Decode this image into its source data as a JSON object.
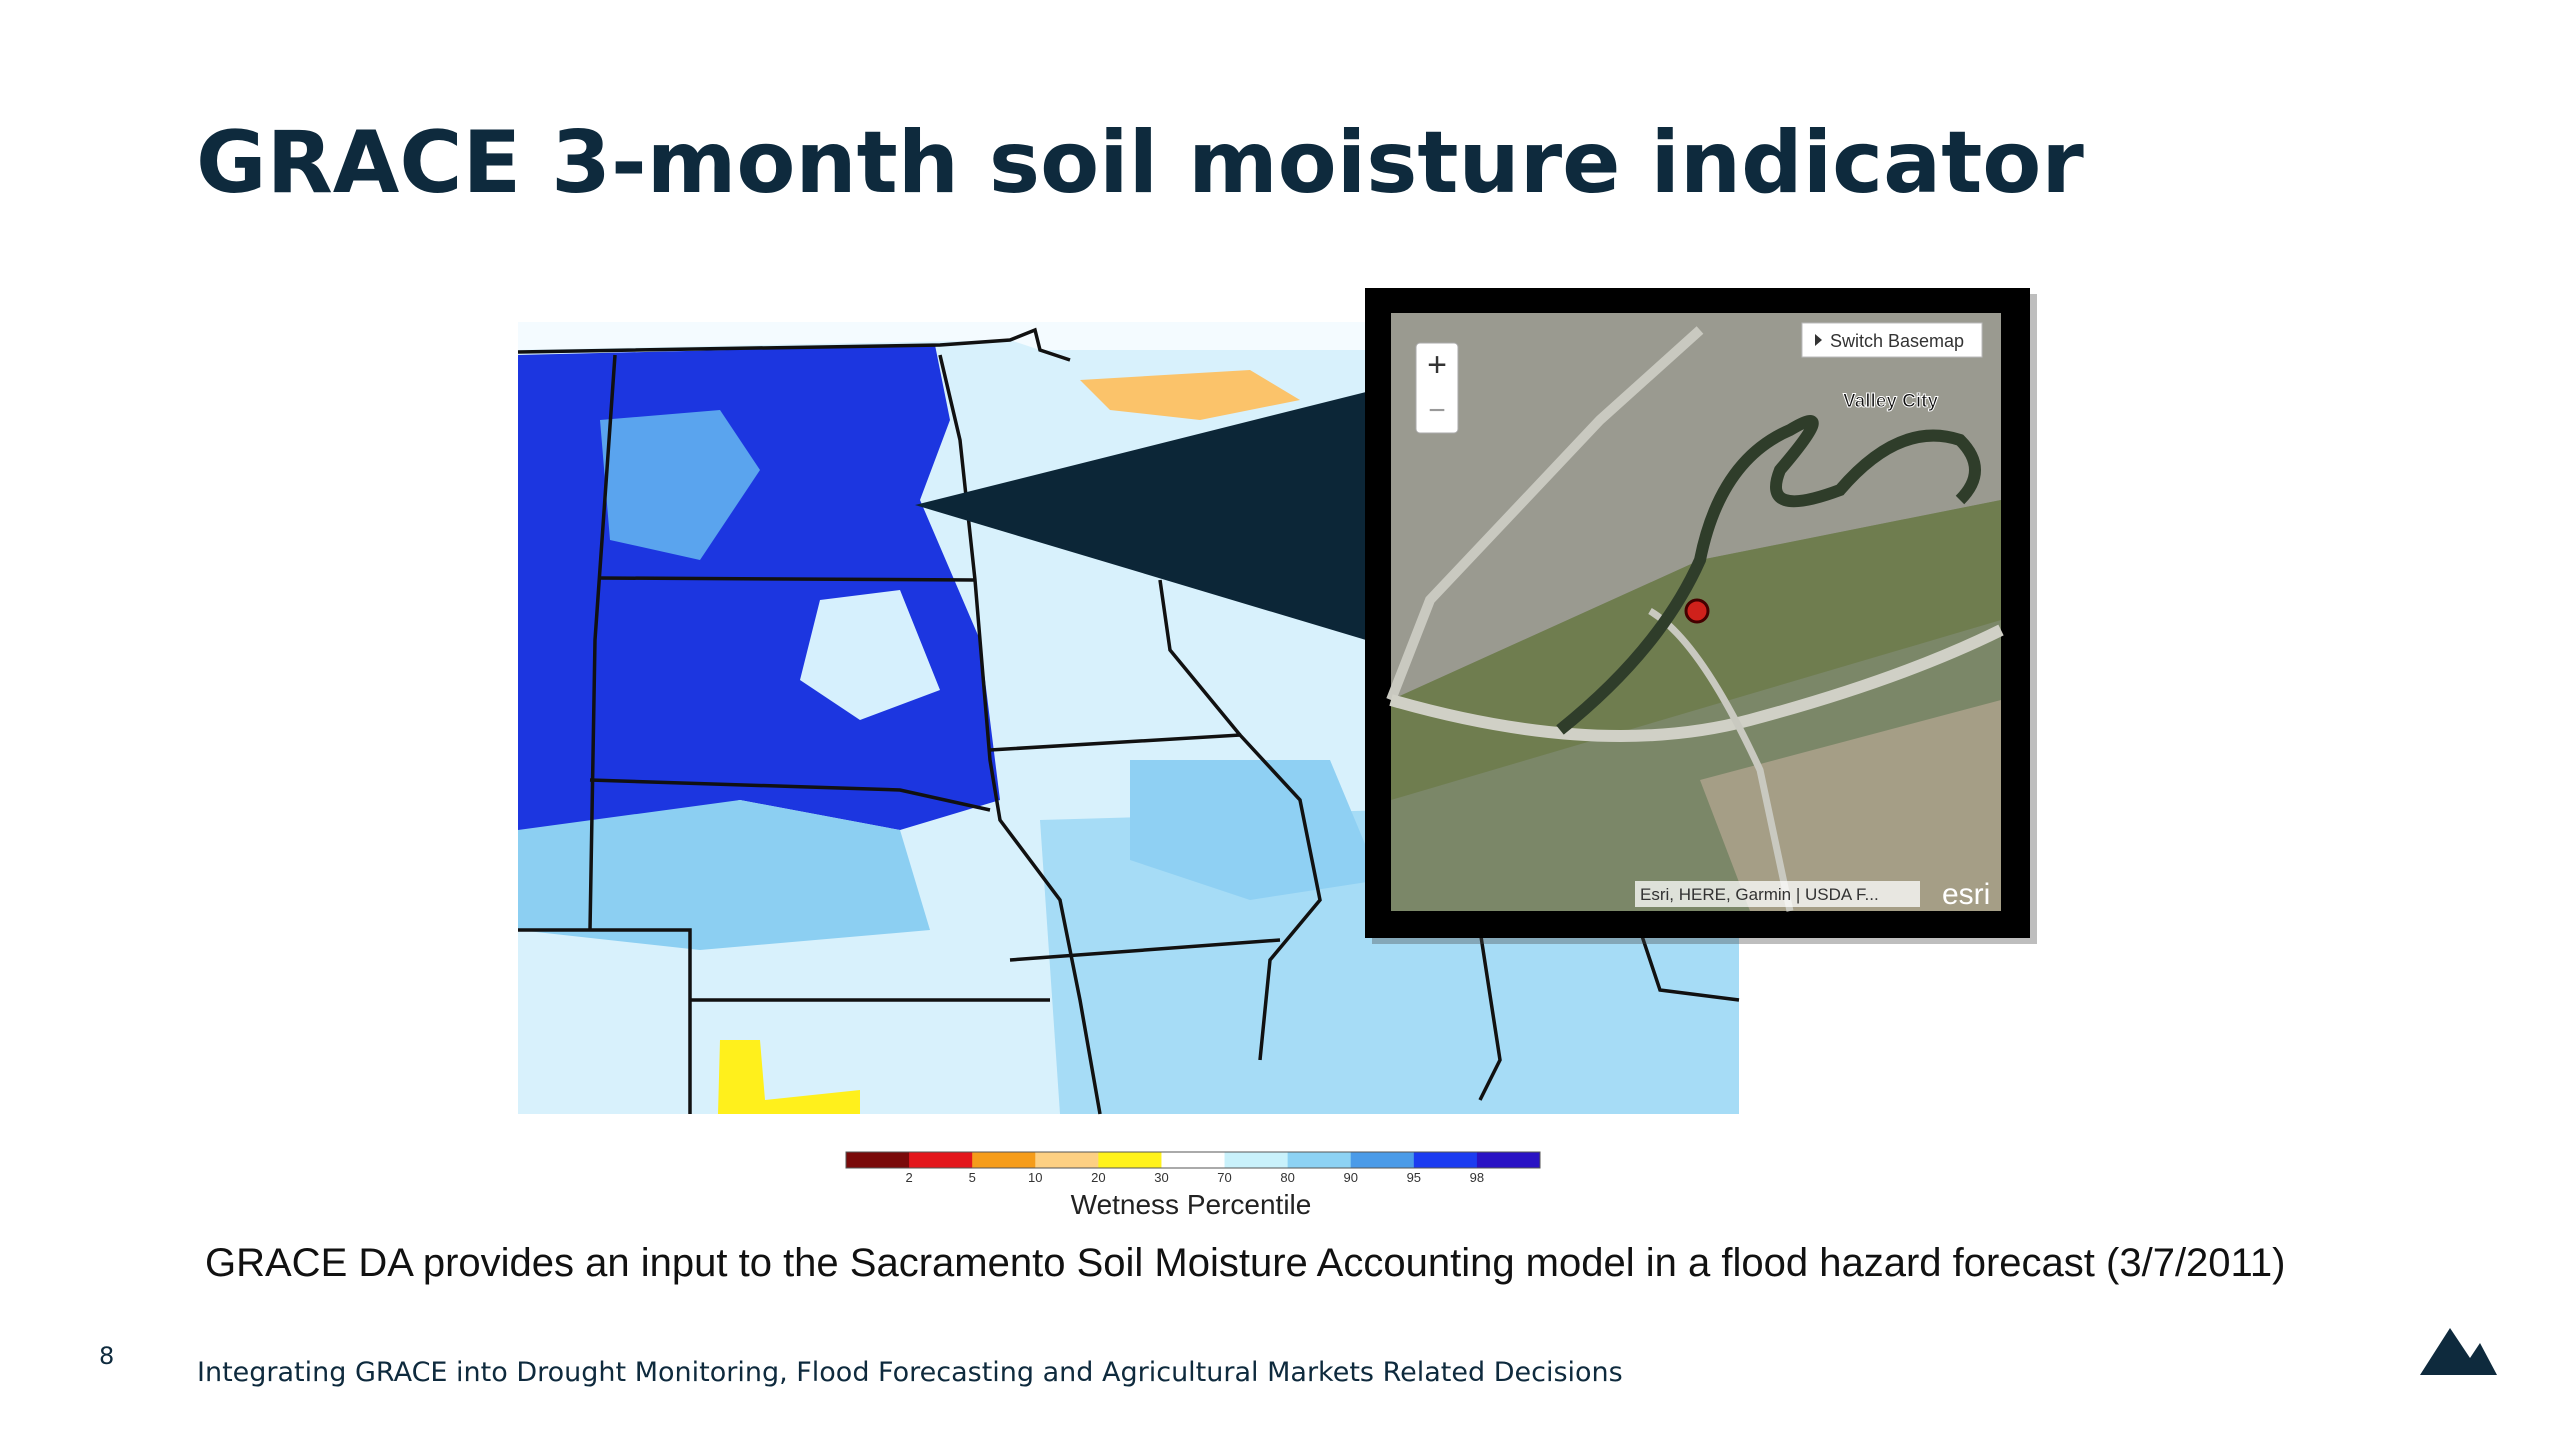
{
  "title": "GRACE 3-month soil moisture indicator",
  "map_inset": {
    "zoom_in": "+",
    "zoom_out": "−",
    "basemap_button": "Switch Basemap",
    "place_label": "Valley City",
    "attribution": "Esri, HERE, Garmin | USDA F...",
    "logo": "esri"
  },
  "colorbar": {
    "label": "Wetness Percentile",
    "ticks": [
      2,
      5,
      10,
      20,
      30,
      70,
      80,
      90,
      95,
      98
    ],
    "colors": [
      "#7a0a0a",
      "#e3161c",
      "#f59c1a",
      "#fdd083",
      "#fff21c",
      "#ffffff",
      "#c9f1fb",
      "#8dd2f4",
      "#4b9be8",
      "#1c3cf0",
      "#2a13c4"
    ]
  },
  "caption": "GRACE DA provides an input to the Sacramento Soil Moisture Accounting model in a flood hazard forecast (3/7/2011)",
  "page_number": "8",
  "footer": "Integrating GRACE into Drought Monitoring, Flood Forecasting and Agricultural Markets Related Decisions"
}
